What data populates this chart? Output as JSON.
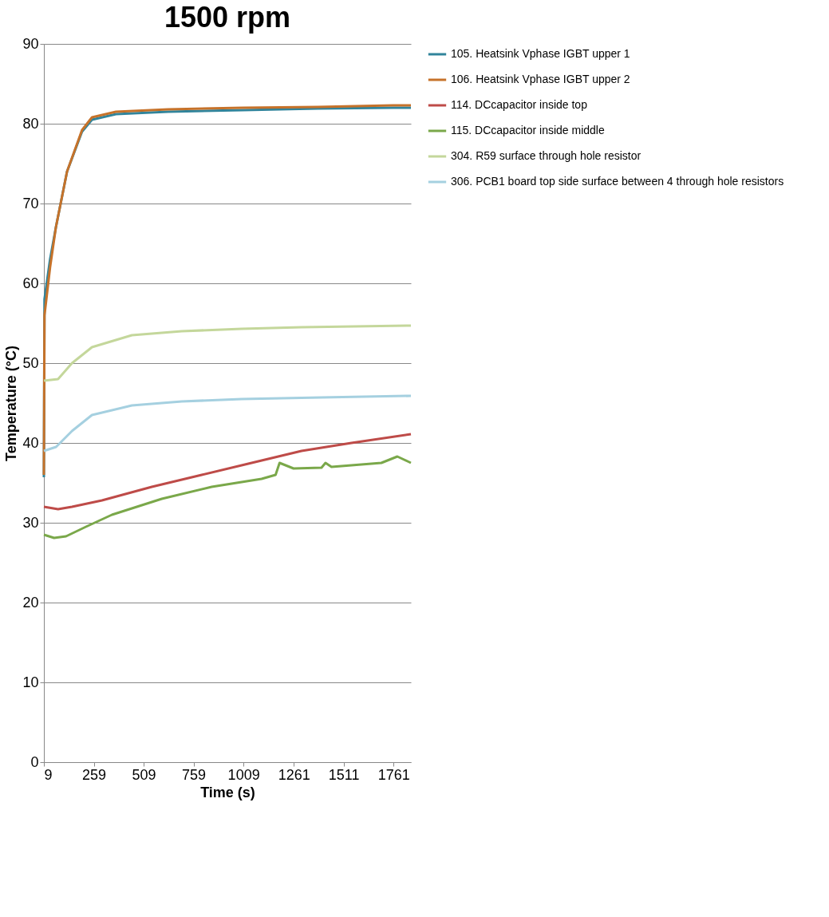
{
  "chart_data": {
    "type": "line",
    "title": "1500 rpm",
    "xlabel": "Time (s)",
    "ylabel": "Temperature (°C)",
    "xlim": [
      9,
      1848
    ],
    "xticks": [
      9,
      259,
      509,
      759,
      1009,
      1261,
      1511,
      1761
    ],
    "ylim": [
      0,
      90
    ],
    "yticks": [
      0,
      10,
      20,
      30,
      40,
      50,
      60,
      70,
      80,
      90
    ],
    "grid": "y",
    "legend": "right",
    "marker": "none",
    "line_style": "solid",
    "series": [
      {
        "name": "105. Heatsink Vphase IGBT upper 1",
        "color": "#31849b",
        "x": [
          9,
          12,
          40,
          69,
          125,
          200,
          250,
          370,
          632,
          1007,
          1383,
          1758,
          1848
        ],
        "values": [
          35.7,
          58,
          63,
          67,
          74,
          79,
          80.5,
          81.2,
          81.5,
          81.7,
          81.9,
          82,
          82
        ]
      },
      {
        "name": "106. Heatsink Vphase IGBT upper 2",
        "color": "#c6722a",
        "x": [
          9,
          12,
          40,
          69,
          125,
          200,
          250,
          370,
          632,
          1007,
          1383,
          1758,
          1848
        ],
        "values": [
          36,
          56,
          62,
          67,
          74,
          79.2,
          80.8,
          81.5,
          81.8,
          82,
          82.1,
          82.3,
          82.3
        ]
      },
      {
        "name": "114. DCcapacitor inside top",
        "color": "#be4b48",
        "x": [
          9,
          80,
          150,
          300,
          550,
          800,
          1050,
          1300,
          1550,
          1848
        ],
        "values": [
          32,
          31.7,
          32,
          32.8,
          34.5,
          36,
          37.5,
          39,
          40,
          41.1
        ]
      },
      {
        "name": "115. DCcapacitor inside middle",
        "color": "#7aa84a",
        "x": [
          9,
          60,
          120,
          220,
          350,
          600,
          850,
          1100,
          1170,
          1190,
          1260,
          1400,
          1420,
          1450,
          1700,
          1780,
          1848
        ],
        "values": [
          28.5,
          28.1,
          28.3,
          29.5,
          31,
          33,
          34.5,
          35.5,
          36,
          37.5,
          36.8,
          36.9,
          37.5,
          37,
          37.5,
          38.3,
          37.5
        ]
      },
      {
        "name": "304. R59 surface through hole resistor",
        "color": "#c4d79b",
        "x": [
          9,
          80,
          150,
          250,
          450,
          700,
          1000,
          1300,
          1848
        ],
        "values": [
          47.8,
          48,
          50,
          52,
          53.5,
          54,
          54.3,
          54.5,
          54.7
        ]
      },
      {
        "name": "306. PCB1 board top side surface between 4 through hole resistors",
        "color": "#a5d0e0",
        "x": [
          9,
          70,
          150,
          250,
          450,
          700,
          1000,
          1400,
          1848
        ],
        "values": [
          39,
          39.5,
          41.5,
          43.5,
          44.7,
          45.2,
          45.5,
          45.7,
          45.9
        ]
      }
    ]
  }
}
